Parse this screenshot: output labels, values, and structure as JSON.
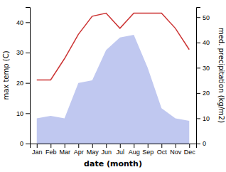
{
  "chart_data": {
    "type": "line",
    "categories": [
      "Jan",
      "Feb",
      "Mar",
      "Apr",
      "May",
      "Jun",
      "Jul",
      "Aug",
      "Sep",
      "Oct",
      "Nov",
      "Dec"
    ],
    "series": [
      {
        "type": "area",
        "axis": "y2",
        "color": "#c0c8f0",
        "values": [
          10,
          11,
          10,
          24,
          25,
          37,
          42,
          43,
          30,
          14,
          10,
          9
        ]
      },
      {
        "type": "line",
        "color": "#cc3333",
        "values": [
          21,
          21,
          28,
          36,
          42,
          43,
          38,
          43,
          43,
          43,
          38,
          31
        ]
      }
    ],
    "ylim": [
      0,
      45
    ],
    "yticks": [
      0,
      10,
      20,
      30,
      40
    ],
    "y2lim": [
      0,
      54
    ],
    "y2ticks": [
      0,
      10,
      20,
      30,
      40,
      50
    ],
    "xlabel": "date (month)",
    "ylabel": "max temp (C)",
    "y2label": "med. precipitation (kg/m2)"
  }
}
